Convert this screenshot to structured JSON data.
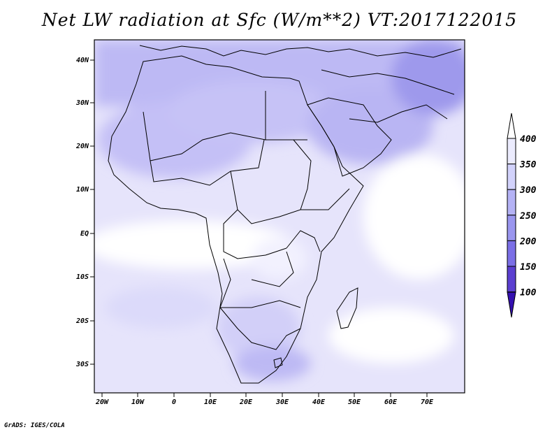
{
  "title": "Net LW radiation at Sfc (W/m**2) VT:2017122015",
  "credit": "GrADS: IGES/COLA",
  "map": {
    "lat_ticks": [
      "40N",
      "30N",
      "20N",
      "10N",
      "EQ",
      "10S",
      "20S",
      "30S"
    ],
    "lon_ticks": [
      "20W",
      "10W",
      "0",
      "10E",
      "20E",
      "30E",
      "40E",
      "50E",
      "60E",
      "70E"
    ],
    "extent": {
      "lon_min": -24,
      "lon_max": 79,
      "lat_min": -37,
      "lat_max": 45
    }
  },
  "colorbar": {
    "labels": [
      "400",
      "350",
      "300",
      "250",
      "200",
      "150",
      "100"
    ],
    "colors": [
      "#ffffff",
      "#ebebfd",
      "#d2d2fb",
      "#b4b2f5",
      "#9a96ef",
      "#7b6fe6",
      "#5b3fd0",
      "#3410b0"
    ]
  }
}
